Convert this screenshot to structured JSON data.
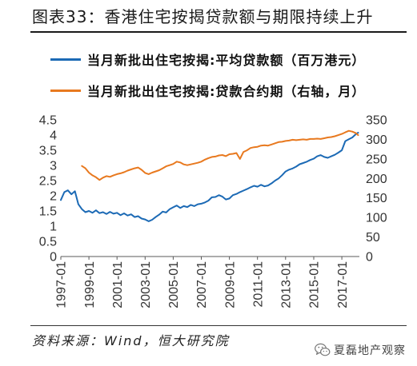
{
  "chart_data": {
    "type": "line",
    "title": "图表33：香港住宅按揭贷款额与期限持续上升",
    "legend_position": "top",
    "grid": false,
    "x_range": [
      "1997-01",
      "2018-04"
    ],
    "x_ticks": [
      "1997-01",
      "1999-01",
      "2001-01",
      "2003-01",
      "2005-01",
      "2007-01",
      "2009-01",
      "2011-01",
      "2013-01",
      "2015-01",
      "2017-01"
    ],
    "y_left": {
      "range": [
        0,
        4.5
      ],
      "ticks": [
        0,
        0.5,
        1,
        1.5,
        2,
        2.5,
        3,
        3.5,
        4,
        4.5
      ]
    },
    "y_right": {
      "range": [
        0,
        350
      ],
      "ticks": [
        0,
        50,
        100,
        150,
        200,
        250,
        300,
        350
      ]
    },
    "series": [
      {
        "name": "当月新批出住宅按揭:平均贷款额（百万港元）",
        "axis": "left",
        "color": "#1c6ab5",
        "x": [
          "1997-01",
          "1997-04",
          "1997-07",
          "1997-10",
          "1998-01",
          "1998-04",
          "1998-07",
          "1998-10",
          "1999-01",
          "1999-04",
          "1999-07",
          "1999-10",
          "2000-01",
          "2000-04",
          "2000-07",
          "2000-10",
          "2001-01",
          "2001-04",
          "2001-07",
          "2001-10",
          "2002-01",
          "2002-04",
          "2002-07",
          "2002-10",
          "2003-01",
          "2003-04",
          "2003-07",
          "2003-10",
          "2004-01",
          "2004-04",
          "2004-07",
          "2004-10",
          "2005-01",
          "2005-04",
          "2005-07",
          "2005-10",
          "2006-01",
          "2006-04",
          "2006-07",
          "2006-10",
          "2007-01",
          "2007-04",
          "2007-07",
          "2007-10",
          "2008-01",
          "2008-04",
          "2008-07",
          "2008-10",
          "2009-01",
          "2009-04",
          "2009-07",
          "2009-10",
          "2010-01",
          "2010-04",
          "2010-07",
          "2010-10",
          "2011-01",
          "2011-04",
          "2011-07",
          "2011-10",
          "2012-01",
          "2012-04",
          "2012-07",
          "2012-10",
          "2013-01",
          "2013-04",
          "2013-07",
          "2013-10",
          "2014-01",
          "2014-04",
          "2014-07",
          "2014-10",
          "2015-01",
          "2015-04",
          "2015-07",
          "2015-10",
          "2016-01",
          "2016-04",
          "2016-07",
          "2016-10",
          "2017-01",
          "2017-04",
          "2017-07",
          "2017-10",
          "2018-01",
          "2018-03"
        ],
        "values": [
          1.86,
          2.12,
          2.18,
          2.05,
          2.15,
          1.72,
          1.56,
          1.46,
          1.5,
          1.44,
          1.52,
          1.43,
          1.46,
          1.4,
          1.47,
          1.41,
          1.44,
          1.36,
          1.42,
          1.35,
          1.39,
          1.3,
          1.33,
          1.25,
          1.22,
          1.16,
          1.21,
          1.3,
          1.38,
          1.48,
          1.45,
          1.56,
          1.62,
          1.68,
          1.6,
          1.66,
          1.63,
          1.7,
          1.66,
          1.72,
          1.74,
          1.78,
          1.84,
          1.95,
          1.96,
          2.02,
          1.97,
          1.88,
          1.91,
          2.02,
          2.06,
          2.12,
          2.17,
          2.22,
          2.28,
          2.33,
          2.3,
          2.36,
          2.31,
          2.34,
          2.41,
          2.5,
          2.57,
          2.68,
          2.8,
          2.86,
          2.9,
          2.96,
          3.04,
          3.08,
          3.12,
          3.18,
          3.22,
          3.3,
          3.34,
          3.28,
          3.25,
          3.3,
          3.35,
          3.42,
          3.5,
          3.8,
          3.86,
          3.92,
          4.03,
          4.08
        ]
      },
      {
        "name": "当月新批出住宅按揭:贷款合约期（右轴，月）",
        "axis": "right",
        "color": "#e8791f",
        "x": [
          "1998-07",
          "1998-10",
          "1999-01",
          "1999-04",
          "1999-07",
          "1999-10",
          "2000-01",
          "2000-04",
          "2000-07",
          "2000-10",
          "2001-01",
          "2001-04",
          "2001-07",
          "2001-10",
          "2002-01",
          "2002-04",
          "2002-07",
          "2002-10",
          "2003-01",
          "2003-04",
          "2003-07",
          "2003-10",
          "2004-01",
          "2004-04",
          "2004-07",
          "2004-10",
          "2005-01",
          "2005-04",
          "2005-07",
          "2005-10",
          "2006-01",
          "2006-04",
          "2006-07",
          "2006-10",
          "2007-01",
          "2007-04",
          "2007-07",
          "2007-10",
          "2008-01",
          "2008-04",
          "2008-07",
          "2008-10",
          "2009-01",
          "2009-04",
          "2009-07",
          "2009-10",
          "2010-01",
          "2010-04",
          "2010-07",
          "2010-10",
          "2011-01",
          "2011-04",
          "2011-07",
          "2011-10",
          "2012-01",
          "2012-04",
          "2012-07",
          "2012-10",
          "2013-01",
          "2013-04",
          "2013-07",
          "2013-10",
          "2014-01",
          "2014-04",
          "2014-07",
          "2014-10",
          "2015-01",
          "2015-04",
          "2015-07",
          "2015-10",
          "2016-01",
          "2016-04",
          "2016-07",
          "2016-10",
          "2017-01",
          "2017-04",
          "2017-07",
          "2017-10",
          "2018-01",
          "2018-03"
        ],
        "values": [
          232,
          226,
          215,
          208,
          203,
          196,
          202,
          206,
          204,
          208,
          211,
          213,
          216,
          220,
          223,
          226,
          228,
          222,
          214,
          211,
          215,
          218,
          221,
          226,
          231,
          234,
          237,
          243,
          241,
          236,
          234,
          236,
          238,
          240,
          243,
          248,
          252,
          255,
          256,
          259,
          260,
          257,
          262,
          263,
          265,
          250,
          268,
          272,
          278,
          280,
          281,
          284,
          285,
          284,
          287,
          290,
          293,
          294,
          296,
          297,
          299,
          298,
          299,
          300,
          299,
          301,
          301,
          302,
          301,
          303,
          305,
          306,
          308,
          311,
          314,
          318,
          322,
          320,
          316,
          311
        ]
      }
    ]
  },
  "source": "资料来源：Wind，恒大研究院",
  "watermark": {
    "text": "夏磊地产观察",
    "icon": "wechat-icon"
  }
}
